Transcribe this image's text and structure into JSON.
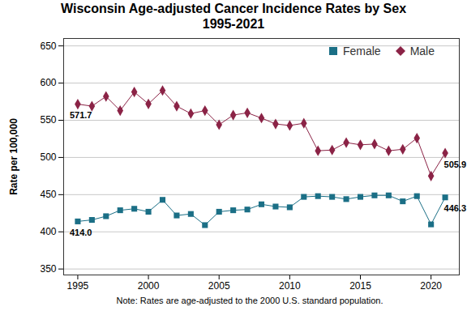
{
  "chart_data": {
    "type": "line",
    "title": "Wisconsin Age-adjusted Cancer Incidence Rates by Sex",
    "subtitle": "1995-2021",
    "y_label": "Rate per 100,000",
    "caption": "Note: Rates are age-adjusted to the 2000 U.S. standard population.",
    "x": [
      1995,
      1996,
      1997,
      1998,
      1999,
      2000,
      2001,
      2002,
      2003,
      2004,
      2005,
      2006,
      2007,
      2008,
      2009,
      2010,
      2011,
      2012,
      2013,
      2014,
      2015,
      2016,
      2017,
      2018,
      2019,
      2020,
      2021
    ],
    "series": [
      {
        "name": "Female",
        "color": "#1b6f86",
        "marker": "square",
        "values": [
          414.0,
          416,
          421,
          429,
          431,
          427,
          443,
          422,
          424,
          409,
          427,
          429,
          430,
          437,
          434,
          433,
          447,
          448,
          447,
          444,
          447,
          449,
          449,
          441,
          448,
          410,
          446.3
        ]
      },
      {
        "name": "Male",
        "color": "#8b2346",
        "marker": "diamond",
        "values": [
          571.7,
          569,
          582,
          563,
          588,
          572,
          590,
          569,
          559,
          563,
          544,
          557,
          560,
          553,
          545,
          543,
          546,
          509,
          510,
          520,
          517,
          518,
          509,
          511,
          526,
          475,
          505.9
        ]
      }
    ],
    "annotations": [
      {
        "x": 1995,
        "y": 571.7,
        "text": "571.7"
      },
      {
        "x": 1995,
        "y": 414.0,
        "text": "414.0"
      },
      {
        "x": 2021,
        "y": 505.9,
        "text": "505.9"
      },
      {
        "x": 2021,
        "y": 446.3,
        "text": "446.3"
      }
    ],
    "xlim": [
      1994,
      2022
    ],
    "xticks": [
      1995,
      2000,
      2005,
      2010,
      2015,
      2020
    ],
    "ylim": [
      342,
      660
    ],
    "yticks": [
      350,
      400,
      450,
      500,
      550,
      600,
      650
    ],
    "grid": true,
    "legend": "top-right"
  }
}
